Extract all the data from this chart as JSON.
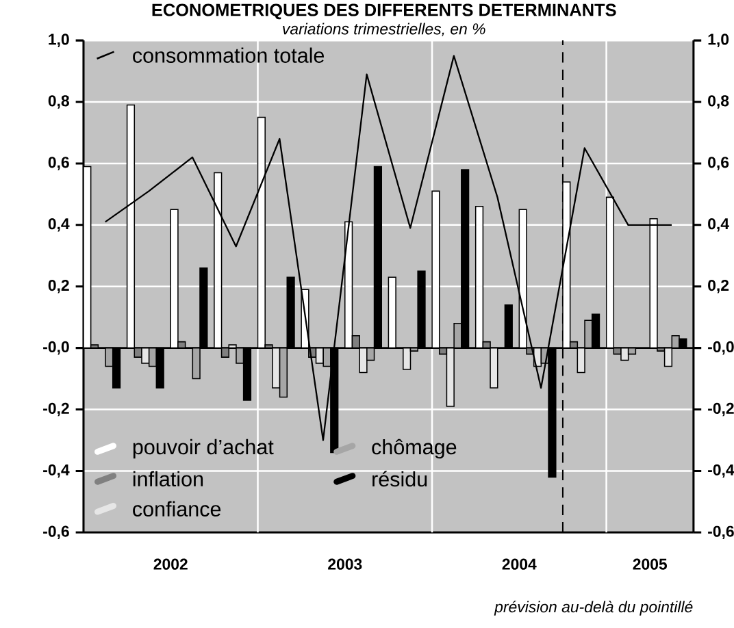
{
  "chart_data": {
    "type": "bar",
    "title": "ECONOMETRIQUES DES DIFFERENTS DETERMINANTS",
    "subtitle": "variations trimestrielles, en %",
    "x": [
      2002.125,
      2002.375,
      2002.625,
      2002.875,
      2003.125,
      2003.375,
      2003.625,
      2003.875,
      2004.125,
      2004.375,
      2004.625,
      2004.875,
      2005.125,
      2005.375
    ],
    "series": [
      {
        "name": "pouvoir d’achat",
        "color": "#ffffff",
        "values": [
          0.59,
          0.79,
          0.45,
          0.57,
          0.75,
          0.19,
          0.41,
          0.23,
          0.51,
          0.46,
          0.45,
          0.54,
          0.49,
          0.42
        ]
      },
      {
        "name": "inflation",
        "color": "#808080",
        "values": [
          0.01,
          -0.03,
          0.02,
          -0.03,
          0.01,
          -0.03,
          0.04,
          null,
          -0.02,
          0.02,
          -0.02,
          0.02,
          -0.02,
          -0.01
        ]
      },
      {
        "name": "confiance",
        "color": "#e6e6e6",
        "values": [
          null,
          -0.05,
          null,
          0.01,
          -0.13,
          -0.05,
          -0.08,
          -0.07,
          -0.19,
          -0.13,
          -0.06,
          -0.08,
          -0.04,
          -0.06
        ]
      },
      {
        "name": "chômage",
        "color": "#a6a6a6",
        "values": [
          -0.06,
          -0.06,
          -0.1,
          -0.05,
          -0.16,
          -0.06,
          -0.04,
          -0.01,
          0.08,
          null,
          -0.05,
          0.09,
          -0.02,
          0.04
        ]
      },
      {
        "name": "résidu",
        "color": "#000000",
        "values": [
          -0.13,
          -0.13,
          0.26,
          -0.17,
          0.23,
          -0.34,
          0.59,
          0.25,
          0.58,
          0.14,
          -0.42,
          0.11,
          null,
          0.03
        ]
      },
      {
        "name": "consommation totale",
        "type": "line",
        "color": "#000000",
        "values": [
          0.41,
          0.51,
          0.62,
          0.33,
          0.68,
          -0.3,
          0.89,
          0.39,
          0.95,
          0.49,
          -0.13,
          0.65,
          0.4,
          0.4
        ]
      }
    ],
    "xlim": [
      2002,
      2005.5
    ],
    "xticks": [
      {
        "value": 2002.5,
        "label": "2002"
      },
      {
        "value": 2003.5,
        "label": "2003"
      },
      {
        "value": 2004.5,
        "label": "2004"
      },
      {
        "value": 2005.25,
        "label": "2005"
      },
      {
        "value": 2003,
        "label": null
      },
      {
        "value": 2004,
        "label": null
      },
      {
        "value": 2005,
        "label": null
      }
    ],
    "ylim": [
      -0.6,
      1.0
    ],
    "yticks": [
      {
        "value": -0.6,
        "label": "-0,6"
      },
      {
        "value": -0.4,
        "label": "-0,4"
      },
      {
        "value": -0.2,
        "label": "-0,2"
      },
      {
        "value": 0,
        "label": "-0,0"
      },
      {
        "value": 0.2,
        "label": "0,2"
      },
      {
        "value": 0.4,
        "label": "0,4"
      },
      {
        "value": 0.6,
        "label": "0,6"
      },
      {
        "value": 0.8,
        "label": "0,8"
      },
      {
        "value": 1.0,
        "label": "1,0"
      }
    ],
    "y2lim": [
      -0.6,
      1.0
    ],
    "y2ticks": [
      {
        "value": -0.6,
        "label": "-0,6"
      },
      {
        "value": -0.4,
        "label": "-0,4"
      },
      {
        "value": -0.2,
        "label": "-0,2"
      },
      {
        "value": 0,
        "label": "-0,0"
      },
      {
        "value": 0.2,
        "label": "0,2"
      },
      {
        "value": 0.4,
        "label": "0,4"
      },
      {
        "value": 0.6,
        "label": "0,6"
      },
      {
        "value": 0.8,
        "label": "0,8"
      },
      {
        "value": 1.0,
        "label": "1,0"
      }
    ],
    "ref_lines": [
      {
        "axis": "x",
        "value": 2004.75,
        "color": "#000000",
        "line_style": "dashed"
      }
    ],
    "annotations": [
      "prévision au-delà du pointillé"
    ],
    "grid": true,
    "legend": "left"
  }
}
